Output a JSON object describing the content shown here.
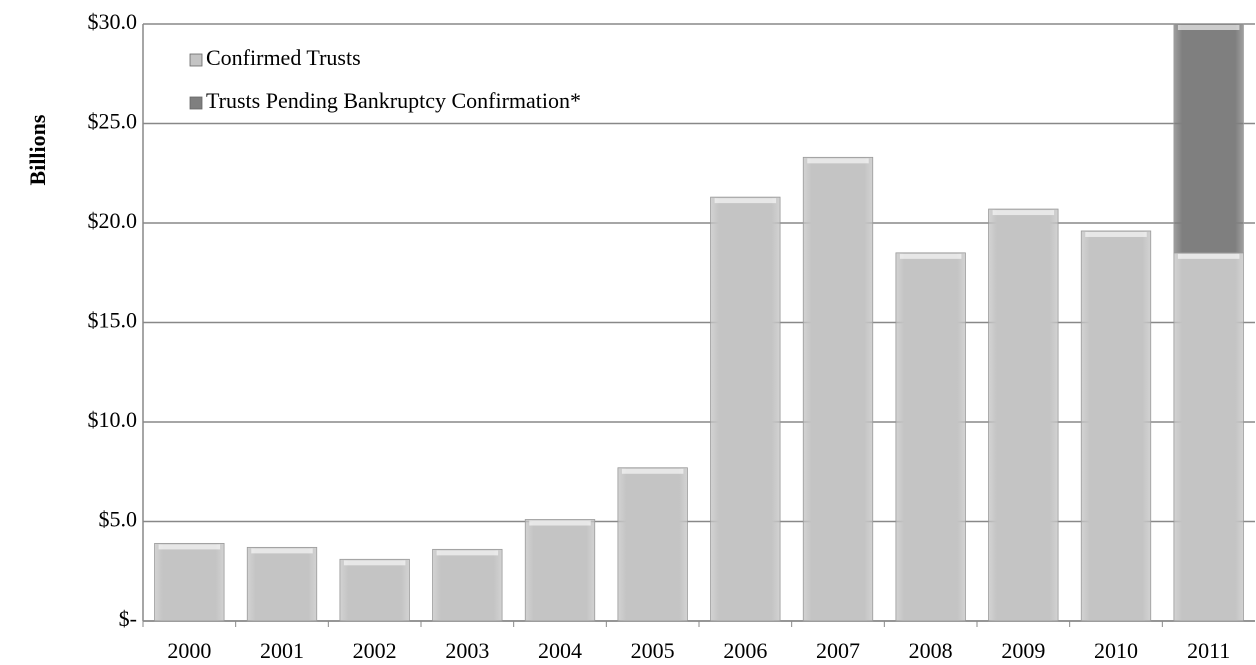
{
  "chart_data": {
    "type": "stacked_bar",
    "y_label": "Billions",
    "categories": [
      "2000",
      "2001",
      "2002",
      "2003",
      "2004",
      "2005",
      "2006",
      "2007",
      "2008",
      "2009",
      "2010",
      "2011"
    ],
    "series": [
      {
        "name": "Confirmed Trusts",
        "color": "#c4c4c4",
        "values": [
          3.9,
          3.7,
          3.1,
          3.6,
          5.1,
          7.7,
          21.3,
          23.3,
          18.5,
          20.7,
          19.6,
          18.5
        ]
      },
      {
        "name": "Trusts Pending Bankruptcy Confirmation*",
        "color": "#7f7f7f",
        "values": [
          null,
          null,
          null,
          null,
          null,
          null,
          null,
          null,
          null,
          null,
          null,
          11.5
        ]
      }
    ],
    "ylim": [
      0,
      30
    ],
    "yticks": [
      {
        "value": 0,
        "label": "$-"
      },
      {
        "value": 5,
        "label": "$5.0"
      },
      {
        "value": 10,
        "label": "$10.0"
      },
      {
        "value": 15,
        "label": "$15.0"
      },
      {
        "value": 20,
        "label": "$20.0"
      },
      {
        "value": 25,
        "label": "$25.0"
      },
      {
        "value": 30,
        "label": "$30.0"
      }
    ],
    "grid": true,
    "legend": "upper-left"
  }
}
